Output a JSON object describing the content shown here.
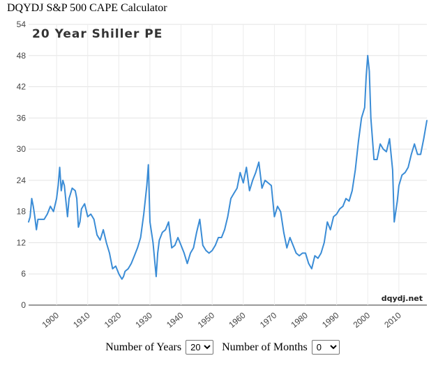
{
  "app": {
    "title": "DQYDJ S&P 500 CAPE Calculator"
  },
  "controls": {
    "years_label": "Number of Years",
    "years_value": "20",
    "months_label": "Number of Months",
    "months_value": "0"
  },
  "chart_data": {
    "type": "line",
    "title": "20 Year Shiller PE",
    "watermark": "dqydj.net",
    "xlabel": "",
    "ylabel": "",
    "xlim": [
      1891,
      2019
    ],
    "ylim": [
      0,
      54
    ],
    "y_ticks": [
      0,
      6,
      12,
      18,
      24,
      30,
      36,
      42,
      48,
      54
    ],
    "x_ticks": [
      "1900",
      "1910",
      "1920",
      "1930",
      "1940",
      "1950",
      "1960",
      "1970",
      "1980",
      "1990",
      "2000",
      "2010"
    ],
    "grid": true,
    "legend": "none",
    "line_color": "#3a8cd6",
    "series": [
      {
        "x": [
          1891,
          1891.5,
          1892,
          1892.5,
          1893,
          1893.5,
          1894,
          1895,
          1896,
          1897,
          1898,
          1899,
          1900,
          1900.5,
          1901,
          1901.5,
          1902,
          1902.5,
          1903,
          1903.5,
          1904,
          1905,
          1906,
          1906.5,
          1907,
          1907.5,
          1908,
          1909,
          1910,
          1911,
          1912,
          1913,
          1914,
          1915,
          1916,
          1917,
          1918,
          1919,
          1920,
          1921,
          1921.5,
          1922,
          1923,
          1924,
          1925,
          1926,
          1927,
          1928,
          1929,
          1929.5,
          1930,
          1931,
          1932,
          1932.5,
          1933,
          1934,
          1935,
          1936,
          1937,
          1938,
          1939,
          1940,
          1941,
          1942,
          1943,
          1944,
          1945,
          1946,
          1947,
          1948,
          1949,
          1950,
          1951,
          1952,
          1953,
          1954,
          1955,
          1956,
          1957,
          1958,
          1959,
          1960,
          1961,
          1962,
          1963,
          1964,
          1965,
          1966,
          1967,
          1968,
          1969,
          1970,
          1971,
          1972,
          1973,
          1974,
          1975,
          1976,
          1977,
          1978,
          1979,
          1980,
          1981,
          1982,
          1983,
          1984,
          1985,
          1986,
          1987,
          1988,
          1989,
          1990,
          1991,
          1992,
          1993,
          1994,
          1995,
          1996,
          1997,
          1998,
          1999,
          1999.5,
          2000,
          2000.5,
          2001,
          2002,
          2003,
          2004,
          2005,
          2006,
          2007,
          2008,
          2008.5,
          2009,
          2009.5,
          2010,
          2011,
          2012,
          2013,
          2014,
          2015,
          2016,
          2017,
          2018,
          2019
        ],
        "values": [
          16,
          17,
          20.5,
          19,
          17,
          14.5,
          16.5,
          16.5,
          16.5,
          17.5,
          19,
          18,
          20.5,
          23,
          26.5,
          22,
          24,
          23,
          20,
          17,
          20.5,
          22.5,
          22,
          20.5,
          15,
          16,
          18.5,
          19.5,
          17,
          17.5,
          16.5,
          13.5,
          12.5,
          14.5,
          12,
          10,
          7,
          7.5,
          6,
          5,
          5.5,
          6.5,
          7,
          8,
          9.5,
          11,
          13,
          17.5,
          23,
          27,
          16,
          12,
          5.5,
          10,
          12.5,
          14,
          14.5,
          16,
          11,
          11.5,
          13,
          11.5,
          10,
          8,
          10,
          11,
          14,
          16.5,
          11.5,
          10.5,
          10,
          10.5,
          11.5,
          13,
          13,
          14.5,
          17,
          20.5,
          21.5,
          22.5,
          25.5,
          23.5,
          26.5,
          22,
          24,
          25.5,
          27.5,
          22.5,
          24,
          23.5,
          23,
          17,
          19,
          18,
          14,
          11,
          13,
          11.5,
          10,
          9.5,
          10,
          10,
          8,
          7,
          9.5,
          9,
          10,
          12,
          16,
          14.5,
          17,
          17.5,
          18.5,
          19,
          20.5,
          20,
          22,
          26,
          31.5,
          36,
          38,
          44,
          48,
          45,
          36,
          28,
          28,
          31,
          30,
          29.5,
          32,
          26,
          16,
          18,
          20,
          23,
          25,
          25.5,
          26.5,
          29,
          31,
          29,
          29,
          32,
          35.5
        ]
      }
    ]
  }
}
